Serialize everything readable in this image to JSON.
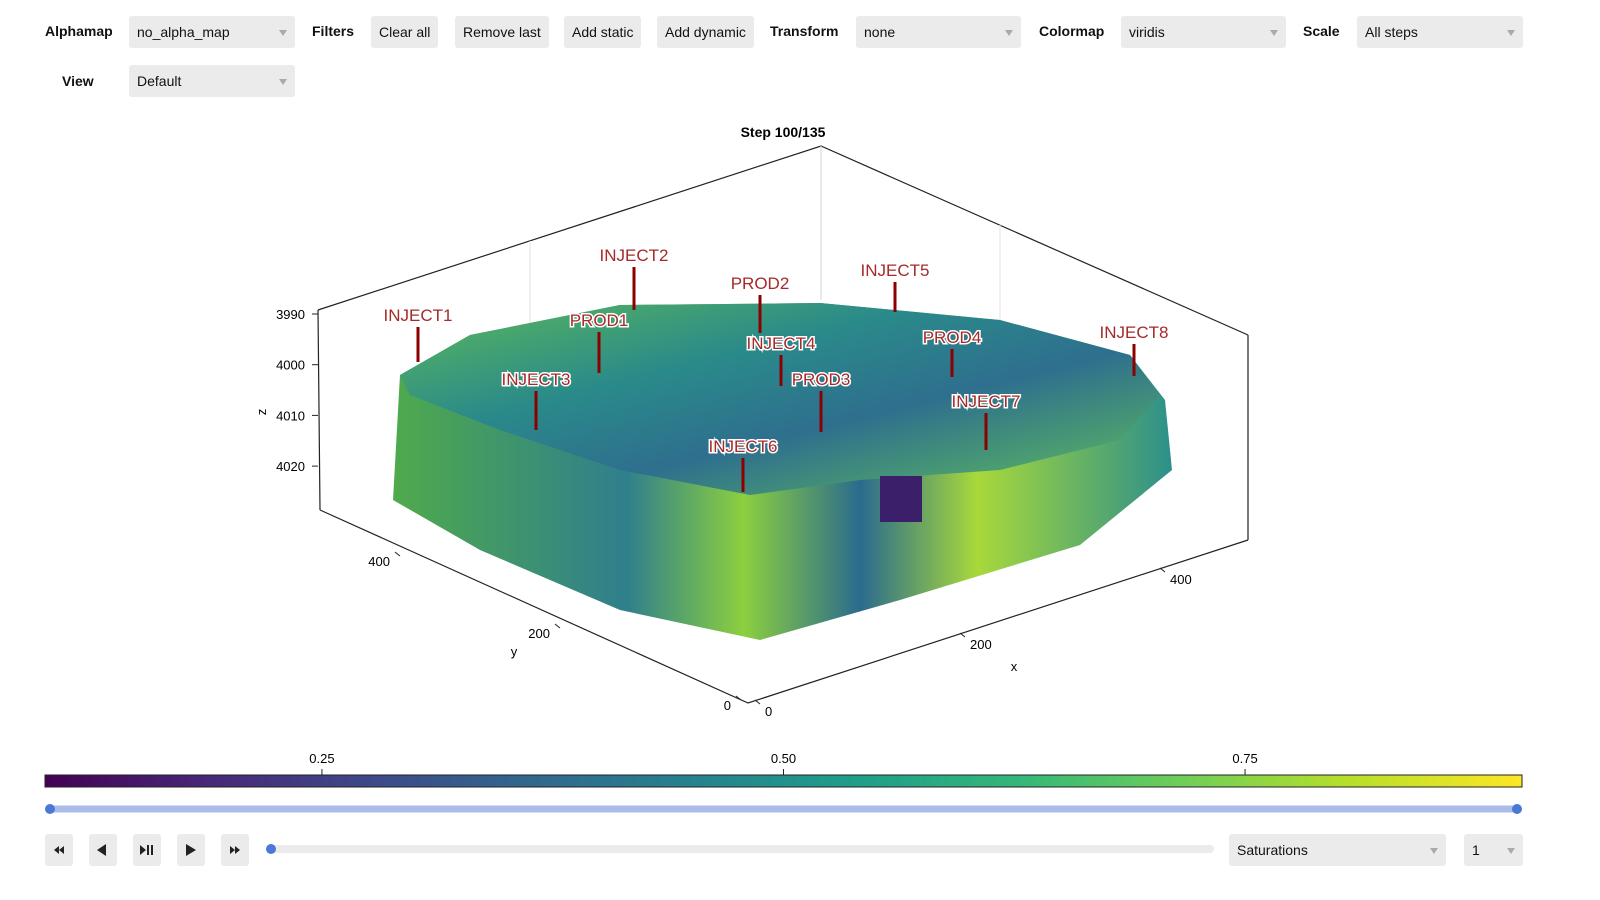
{
  "toolbar": {
    "alphamap": {
      "label": "Alphamap",
      "value": "no_alpha_map"
    },
    "filters": {
      "label": "Filters",
      "buttons": [
        "Clear all",
        "Remove last",
        "Add static",
        "Add dynamic"
      ]
    },
    "transform": {
      "label": "Transform",
      "value": "none"
    },
    "colormap": {
      "label": "Colormap",
      "value": "viridis"
    },
    "scale": {
      "label": "Scale",
      "value": "All steps"
    },
    "view": {
      "label": "View",
      "value": "Default"
    }
  },
  "plot": {
    "title": "Step 100/135",
    "x_label": "x",
    "y_label": "y",
    "z_label": "z",
    "xticks": [
      0,
      200,
      400
    ],
    "yticks": [
      0,
      200,
      400
    ],
    "zticks": [
      3990,
      4000,
      4010,
      4020
    ],
    "wells": [
      "INJECT1",
      "INJECT2",
      "PROD2",
      "INJECT5",
      "PROD1",
      "INJECT4",
      "PROD4",
      "INJECT8",
      "INJECT3",
      "PROD3",
      "INJECT7",
      "INJECT6"
    ]
  },
  "colorbar": {
    "range": [
      0.1,
      0.9
    ],
    "ticks": [
      0.25,
      {
        "value": 0.5,
        "label": "0.50"
      },
      0.75
    ]
  },
  "controls": {
    "field": "Saturations",
    "component": "1"
  }
}
